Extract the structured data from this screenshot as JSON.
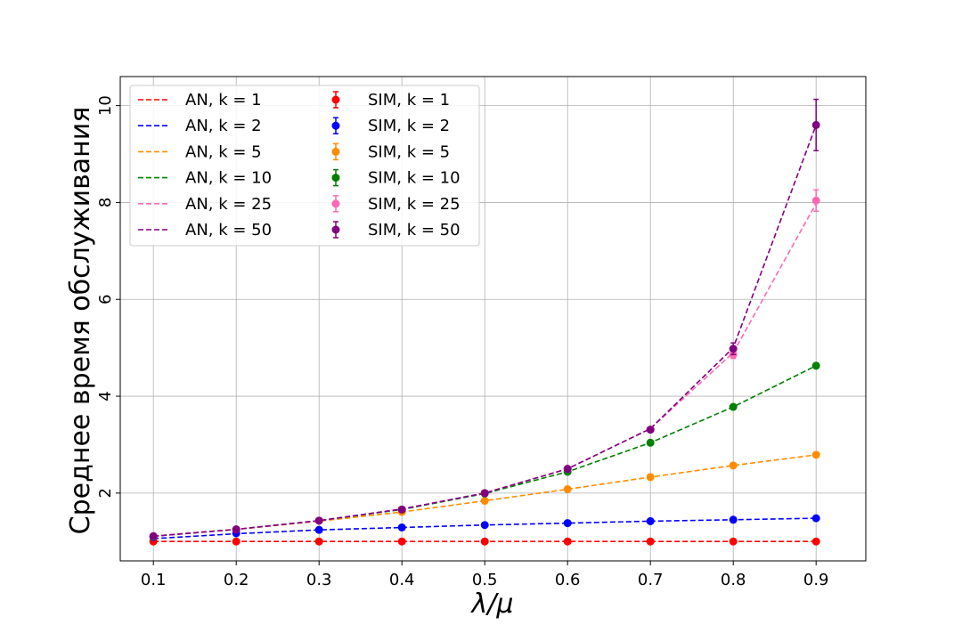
{
  "chart_data": {
    "type": "line",
    "title": "",
    "xlabel": "λ/μ",
    "ylabel": "Среднее время обслуживания",
    "x": [
      0.1,
      0.2,
      0.3,
      0.4,
      0.5,
      0.6,
      0.7,
      0.8,
      0.9
    ],
    "xticks": [
      "0.1",
      "0.2",
      "0.3",
      "0.4",
      "0.5",
      "0.6",
      "0.7",
      "0.8",
      "0.9"
    ],
    "yticks": [
      "2",
      "4",
      "6",
      "8",
      "10"
    ],
    "xlim": [
      0.06,
      0.96
    ],
    "ylim": [
      0.6,
      10.6
    ],
    "grid": true,
    "legend_position": "upper-left",
    "legend_columns": 2,
    "analytic_series": [
      {
        "name": "AN, k = 1",
        "color": "#ff0000",
        "values": [
          1.0,
          1.0,
          1.0,
          1.0,
          1.0,
          1.0,
          1.0,
          1.0,
          1.0
        ]
      },
      {
        "name": "AN, k = 2",
        "color": "#0000ff",
        "values": [
          1.06,
          1.16,
          1.24,
          1.29,
          1.34,
          1.38,
          1.42,
          1.45,
          1.48
        ]
      },
      {
        "name": "AN, k = 5",
        "color": "#ff8c00",
        "values": [
          1.11,
          1.25,
          1.42,
          1.61,
          1.84,
          2.08,
          2.33,
          2.57,
          2.79
        ]
      },
      {
        "name": "AN, k = 10",
        "color": "#008000",
        "values": [
          1.11,
          1.25,
          1.43,
          1.66,
          1.99,
          2.44,
          3.04,
          3.78,
          4.63
        ]
      },
      {
        "name": "AN, k = 25",
        "color": "#ff69b4",
        "values": [
          1.11,
          1.25,
          1.43,
          1.67,
          2.0,
          2.5,
          3.33,
          4.9,
          7.98
        ]
      },
      {
        "name": "AN, k = 50",
        "color": "#800080",
        "values": [
          1.11,
          1.25,
          1.43,
          1.67,
          2.0,
          2.5,
          3.33,
          5.0,
          9.6
        ]
      }
    ],
    "simulation_series": [
      {
        "name": "SIM, k = 1",
        "color": "#ff0000",
        "values": [
          1.0,
          1.0,
          1.0,
          1.0,
          1.0,
          1.0,
          1.0,
          1.0,
          1.0
        ],
        "errors": [
          0,
          0,
          0,
          0,
          0,
          0,
          0,
          0,
          0
        ]
      },
      {
        "name": "SIM, k = 2",
        "color": "#0000ff",
        "values": [
          1.09,
          1.17,
          1.24,
          1.29,
          1.34,
          1.38,
          1.42,
          1.45,
          1.48
        ],
        "errors": [
          0,
          0,
          0,
          0,
          0,
          0,
          0,
          0,
          0
        ]
      },
      {
        "name": "SIM, k = 5",
        "color": "#ff8c00",
        "values": [
          1.1,
          1.25,
          1.43,
          1.61,
          1.84,
          2.08,
          2.33,
          2.57,
          2.79
        ],
        "errors": [
          0,
          0,
          0,
          0,
          0,
          0,
          0,
          0,
          0
        ]
      },
      {
        "name": "SIM, k = 10",
        "color": "#008000",
        "values": [
          1.1,
          1.25,
          1.43,
          1.66,
          1.99,
          2.44,
          3.04,
          3.78,
          4.63
        ],
        "errors": [
          0,
          0,
          0,
          0,
          0,
          0,
          0,
          0,
          0
        ]
      },
      {
        "name": "SIM, k = 25",
        "color": "#ff69b4",
        "values": [
          1.11,
          1.25,
          1.43,
          1.66,
          2.0,
          2.5,
          3.31,
          4.86,
          8.04
        ],
        "errors": [
          0,
          0,
          0,
          0,
          0,
          0,
          0.02,
          0.08,
          0.22
        ]
      },
      {
        "name": "SIM, k = 50",
        "color": "#800080",
        "values": [
          1.11,
          1.25,
          1.43,
          1.66,
          2.0,
          2.5,
          3.31,
          4.98,
          9.6
        ],
        "errors": [
          0,
          0,
          0,
          0,
          0,
          0,
          0.02,
          0.12,
          0.53
        ]
      }
    ]
  }
}
